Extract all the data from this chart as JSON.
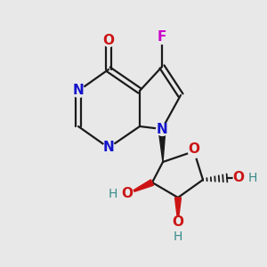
{
  "background_color": "#e8e8e8",
  "bond_color": "#1a1a1a",
  "N_color": "#1414cc",
  "O_color": "#cc1414",
  "F_color": "#cc00cc",
  "OH_color_O": "#cc1414",
  "OH_color_H": "#3a8a8a",
  "figsize": [
    3.0,
    3.0
  ],
  "dpi": 100,
  "xlim": [
    0,
    300
  ],
  "ylim": [
    0,
    300
  ]
}
